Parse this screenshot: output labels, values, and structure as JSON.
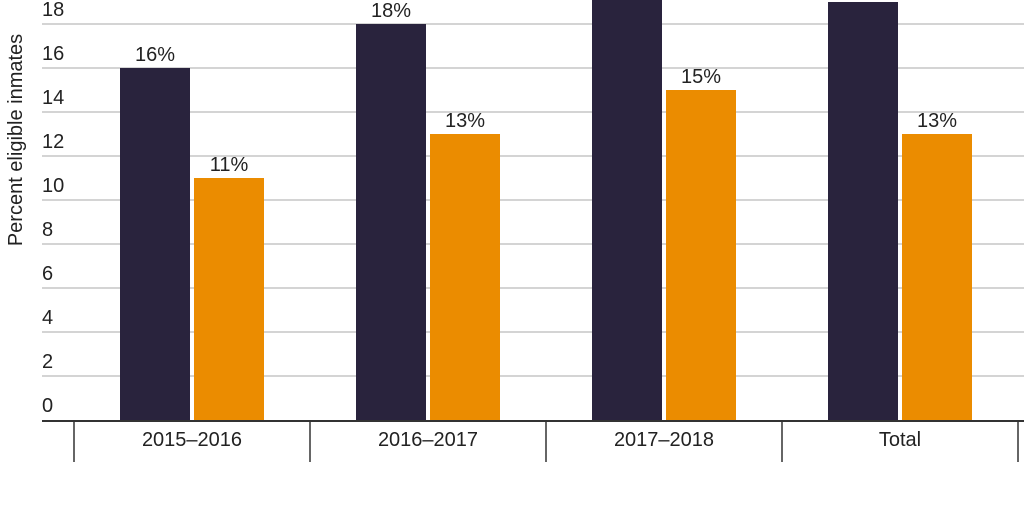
{
  "chart_data": {
    "type": "bar",
    "title": "",
    "xlabel": "",
    "ylabel": "Percent eligible inmates",
    "categories": [
      "2015–2016",
      "2016–2017",
      "2017–2018",
      "Total"
    ],
    "series": [
      {
        "color": "#29233d",
        "values": [
          16,
          18,
          20,
          19
        ],
        "labels": [
          "16%",
          "18%",
          "",
          ""
        ]
      },
      {
        "color": "#eb8c00",
        "values": [
          11,
          13,
          15,
          13
        ],
        "labels": [
          "11%",
          "13%",
          "15%",
          "13%"
        ]
      }
    ],
    "yticks": [
      0,
      2,
      4,
      6,
      8,
      10,
      12,
      14,
      16,
      18
    ],
    "ylim": [
      0,
      19.1
    ],
    "grid": true,
    "legend": "bottom",
    "gridColor": "#d4d4d4"
  }
}
